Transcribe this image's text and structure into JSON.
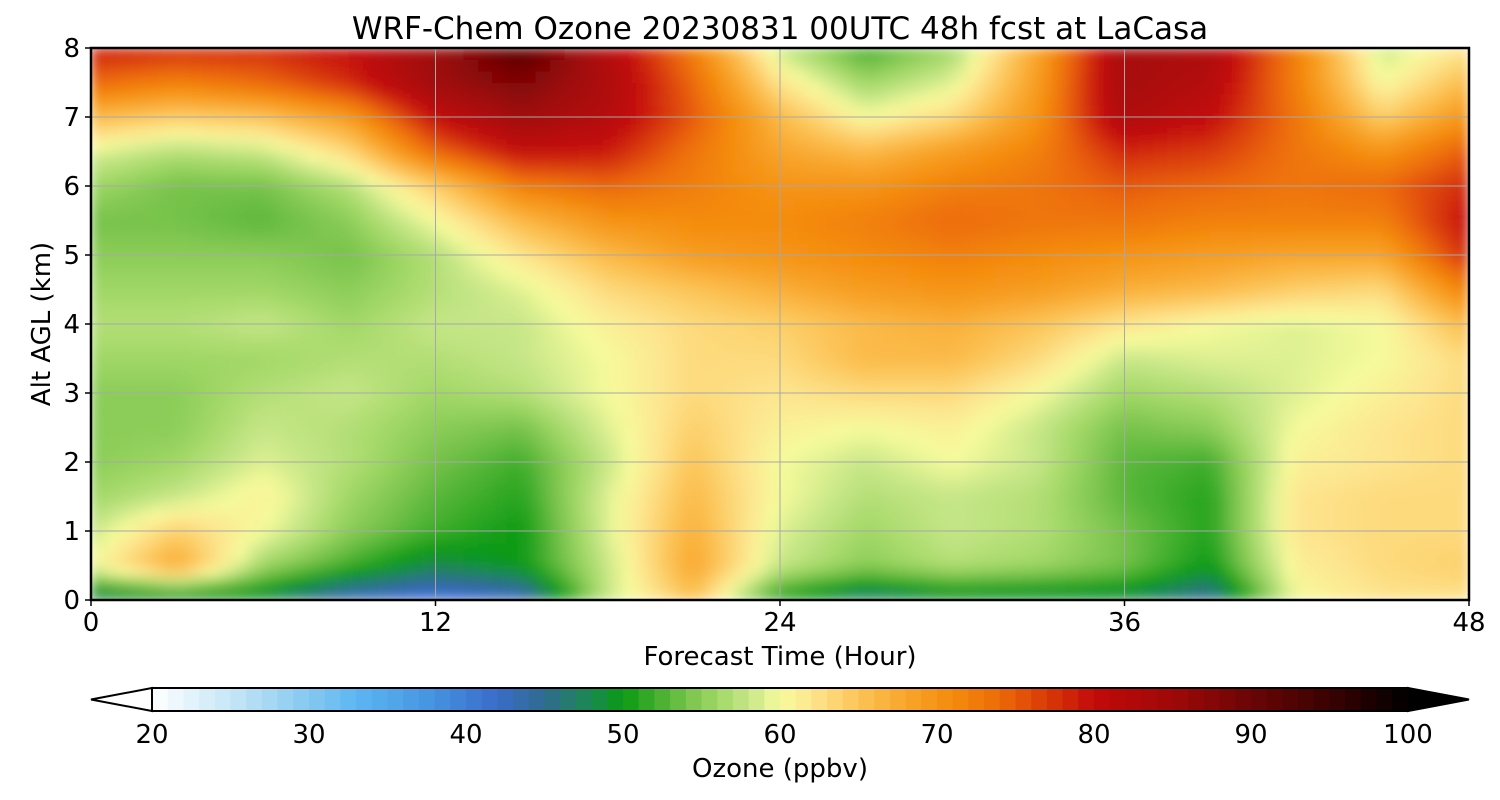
{
  "chart_data": {
    "type": "heatmap",
    "title": "WRF-Chem Ozone  20230831 00UTC 48h fcst at LaCasa",
    "xlabel": "Forecast Time (Hour)",
    "ylabel": "Alt AGL (km)",
    "xlim": [
      0,
      48
    ],
    "ylim": [
      0,
      8
    ],
    "grid": true,
    "x_ticks": [
      0,
      12,
      24,
      36,
      48
    ],
    "y_ticks": [
      0,
      1,
      2,
      3,
      4,
      5,
      6,
      7,
      8
    ],
    "x": [
      0,
      3,
      6,
      9,
      12,
      15,
      18,
      21,
      24,
      27,
      30,
      33,
      36,
      39,
      42,
      45,
      48
    ],
    "y": [
      0,
      0.5,
      1,
      1.5,
      2,
      2.5,
      3,
      3.5,
      4,
      4.5,
      5,
      5.5,
      6,
      6.5,
      7,
      7.5,
      8
    ],
    "z": [
      [
        46,
        47,
        48,
        42,
        40,
        42,
        58,
        65,
        50,
        46,
        48,
        48,
        48,
        44,
        60,
        62,
        62
      ],
      [
        60,
        68,
        56,
        52,
        48,
        50,
        58,
        68,
        58,
        55,
        57,
        56,
        54,
        50,
        61,
        63,
        64
      ],
      [
        58,
        64,
        60,
        55,
        52,
        50,
        59,
        67,
        59,
        56,
        58,
        57,
        54,
        51,
        62,
        63,
        63
      ],
      [
        56,
        58,
        61,
        56,
        53,
        51,
        59,
        66,
        60,
        57,
        58,
        57,
        53,
        51,
        62,
        63,
        63
      ],
      [
        55,
        56,
        59,
        57,
        54,
        52,
        58,
        65,
        60,
        58,
        60,
        58,
        53,
        52,
        61,
        62,
        63
      ],
      [
        55,
        55,
        58,
        57,
        55,
        54,
        59,
        64,
        61,
        60,
        61,
        58,
        54,
        55,
        60,
        62,
        63
      ],
      [
        55,
        55,
        57,
        58,
        56,
        57,
        60,
        63,
        62,
        63,
        63,
        60,
        56,
        57,
        59,
        61,
        63
      ],
      [
        56,
        56,
        56,
        57,
        57,
        58,
        60,
        63,
        63,
        66,
        66,
        63,
        58,
        59,
        59,
        60,
        63
      ],
      [
        57,
        57,
        58,
        56,
        58,
        58,
        61,
        63,
        64,
        66,
        67,
        65,
        62,
        60,
        59,
        60,
        66
      ],
      [
        56,
        56,
        56,
        55,
        57,
        59,
        63,
        65,
        67,
        69,
        70,
        69,
        67,
        66,
        64,
        63,
        72
      ],
      [
        55,
        55,
        55,
        54,
        57,
        62,
        66,
        69,
        70,
        71,
        72,
        71,
        70,
        69,
        68,
        68,
        78
      ],
      [
        54,
        54,
        53,
        55,
        60,
        66,
        70,
        71,
        71,
        72,
        74,
        73,
        73,
        72,
        72,
        72,
        80
      ],
      [
        56,
        54,
        54,
        57,
        64,
        72,
        74,
        72,
        70,
        70,
        72,
        73,
        75,
        74,
        73,
        74,
        78
      ],
      [
        59,
        57,
        58,
        63,
        74,
        80,
        79,
        73,
        68,
        66,
        69,
        72,
        78,
        77,
        73,
        70,
        75
      ],
      [
        66,
        64,
        65,
        69,
        80,
        85,
        82,
        75,
        66,
        60,
        63,
        70,
        83,
        80,
        73,
        64,
        70
      ],
      [
        74,
        72,
        74,
        78,
        85,
        88,
        83,
        74,
        62,
        56,
        59,
        69,
        84,
        82,
        72,
        60,
        66
      ],
      [
        79,
        78,
        78,
        80,
        85,
        92,
        82,
        72,
        58,
        52,
        56,
        68,
        84,
        83,
        72,
        58,
        62
      ]
    ],
    "colorbar": {
      "label": "Ozone  (ppbv)",
      "min": 20,
      "max": 100,
      "ticks": [
        20,
        30,
        40,
        50,
        60,
        70,
        80,
        90,
        100
      ],
      "extend": "both"
    },
    "color_stops": [
      {
        "v": 20,
        "c": "#ffffff"
      },
      {
        "v": 25,
        "c": "#c6e6f6"
      },
      {
        "v": 30,
        "c": "#86c8f0"
      },
      {
        "v": 33,
        "c": "#5cb7f2"
      },
      {
        "v": 38,
        "c": "#4592df"
      },
      {
        "v": 42,
        "c": "#3a6cc9"
      },
      {
        "v": 45,
        "c": "#2f6b8f"
      },
      {
        "v": 48,
        "c": "#1a8a50"
      },
      {
        "v": 50,
        "c": "#0a9a14"
      },
      {
        "v": 52,
        "c": "#3fad2c"
      },
      {
        "v": 54,
        "c": "#76c24a"
      },
      {
        "v": 56,
        "c": "#a0d765"
      },
      {
        "v": 58,
        "c": "#c6e687"
      },
      {
        "v": 60,
        "c": "#f6fb9c"
      },
      {
        "v": 62,
        "c": "#fde58f"
      },
      {
        "v": 65,
        "c": "#fcc457"
      },
      {
        "v": 68,
        "c": "#f8a52b"
      },
      {
        "v": 71,
        "c": "#f48b0d"
      },
      {
        "v": 74,
        "c": "#ec6a08"
      },
      {
        "v": 77,
        "c": "#d93a08"
      },
      {
        "v": 80,
        "c": "#c20a0a"
      },
      {
        "v": 85,
        "c": "#a00808"
      },
      {
        "v": 90,
        "c": "#6a0505"
      },
      {
        "v": 95,
        "c": "#3a0202"
      },
      {
        "v": 100,
        "c": "#000000"
      }
    ]
  }
}
